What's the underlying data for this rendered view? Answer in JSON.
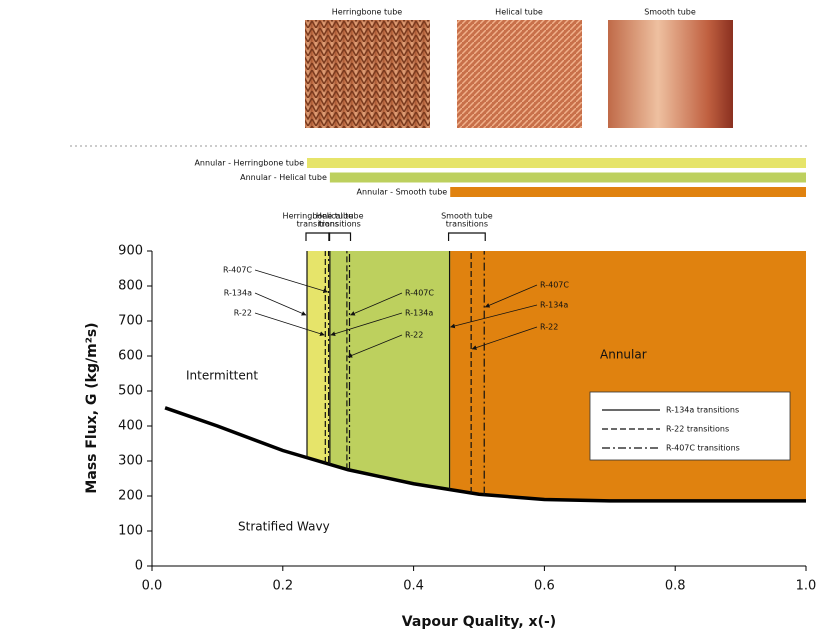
{
  "chart_data": {
    "type": "flow-map",
    "xlabel": "Vapour Quality, x(-)",
    "ylabel": "Mass Flux, G (kg/m²s)",
    "xlim": [
      0,
      1
    ],
    "ylim": [
      0,
      900
    ],
    "xticks": [
      {
        "value": 0,
        "label": "0.0"
      },
      0.2,
      0.4,
      0.6,
      0.8,
      {
        "value": 1,
        "label": "1.0"
      }
    ],
    "yticks": [
      0,
      100,
      200,
      300,
      400,
      500,
      600,
      700,
      800,
      900
    ],
    "photos": [
      "Herringbone tube",
      "Helical tube",
      "Smooth tube"
    ],
    "annular_bars": [
      {
        "label": "Annular - Herringbone tube",
        "start": 0.237,
        "color": "#e6e46a"
      },
      {
        "label": "Annular - Helical tube",
        "start": 0.272,
        "color": "#bdd05e"
      },
      {
        "label": "Annular - Smooth tube",
        "start": 0.456,
        "color": "#e0820f"
      }
    ],
    "groups": [
      {
        "lines": [
          "Herringbone tube",
          "transitions"
        ]
      },
      {
        "lines": [
          "Helical tube",
          "transitions"
        ]
      },
      {
        "lines": [
          "Smooth tube",
          "transitions"
        ]
      }
    ],
    "transition_curve": {
      "x": [
        0.02,
        0.1,
        0.2,
        0.3,
        0.4,
        0.5,
        0.6,
        0.7,
        1.0
      ],
      "y": [
        452,
        400,
        330,
        275,
        235,
        205,
        190,
        186,
        186
      ]
    },
    "transitions": [
      {
        "name": "R-134a transitions",
        "label": "R-134a",
        "dash": "solid",
        "values": [
          0.237,
          0.272,
          0.455
        ]
      },
      {
        "name": "R-22 transitions",
        "label": "R-22",
        "dash": "dashed",
        "values": [
          0.265,
          0.298,
          0.488
        ]
      },
      {
        "name": "R-407C transitions",
        "label": "R-407C",
        "dash": "dashdot",
        "values": [
          0.27,
          0.302,
          0.508
        ]
      }
    ],
    "region_labels": [
      "Intermittent",
      "Stratified Wavy",
      "Annular"
    ]
  }
}
